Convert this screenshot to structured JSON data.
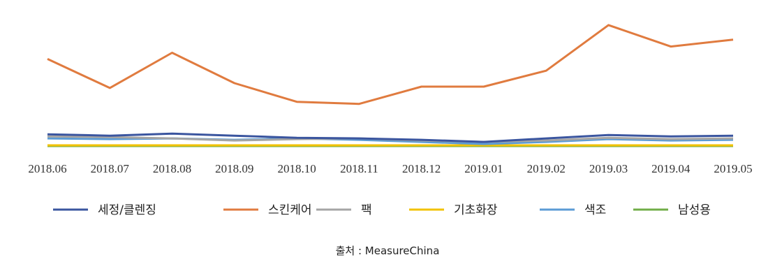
{
  "chart_data": {
    "type": "line",
    "x": [
      "2018.06",
      "2018.07",
      "2018.08",
      "2018.09",
      "2018.10",
      "2018.11",
      "2018.12",
      "2019.01",
      "2019.02",
      "2019.03",
      "2019.04",
      "2019.05"
    ],
    "series": [
      {
        "name": "세정/클렌징",
        "color": "#3a559f",
        "values": [
          19,
          17,
          20,
          17,
          14,
          13,
          11,
          8,
          13,
          18,
          16,
          17
        ]
      },
      {
        "name": "스킨케어",
        "color": "#e07b3f",
        "values": [
          128,
          86,
          137,
          93,
          66,
          63,
          88,
          88,
          111,
          177,
          146,
          156
        ]
      },
      {
        "name": "팩",
        "color": "#a5a5a5",
        "values": [
          16,
          15,
          13,
          10,
          12,
          13,
          10,
          8,
          10,
          14,
          12,
          13
        ]
      },
      {
        "name": "기초화장",
        "color": "#f2c200",
        "values": [
          3,
          3,
          3,
          3,
          3,
          3,
          3,
          3,
          3,
          3,
          3,
          3
        ]
      },
      {
        "name": "색조",
        "color": "#5b9bd5",
        "values": [
          13,
          12,
          13,
          11,
          13,
          11,
          8,
          5,
          8,
          12,
          10,
          11
        ]
      },
      {
        "name": "남성용",
        "color": "#70ad47",
        "values": [
          2,
          2,
          2,
          2,
          2,
          2,
          2,
          2,
          2,
          2,
          2,
          2
        ]
      }
    ],
    "ylim": [
      0,
      185
    ],
    "grid": false,
    "legend_position": "bottom"
  },
  "source": "출처 : MeasureChina"
}
